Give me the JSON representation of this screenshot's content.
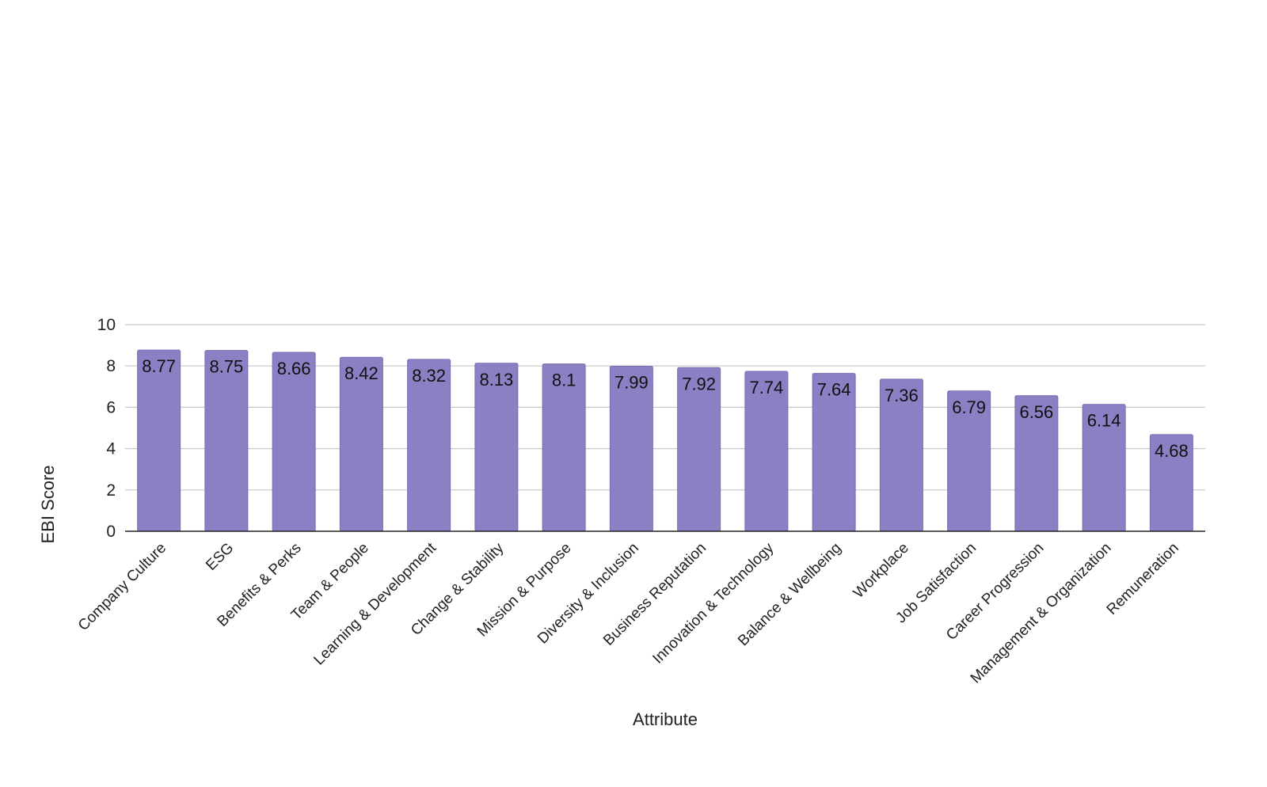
{
  "chart_data": {
    "type": "bar",
    "title": "",
    "xlabel": "Attribute",
    "ylabel": "EBI Score",
    "ylim": [
      0,
      10
    ],
    "yticks": [
      0,
      2,
      4,
      6,
      8,
      10
    ],
    "grid": true,
    "legend": "none",
    "bar_color": "#8c7fc3",
    "categories": [
      "Company Culture",
      "ESG",
      "Benefits & Perks",
      "Team & People",
      "Learning & Development",
      "Change & Stability",
      "Mission & Purpose",
      "Diversity & Inclusion",
      "Business Reputation",
      "Innovation & Technology",
      "Balance & Wellbeing",
      "Workplace",
      "Job Satisfaction",
      "Career Progression",
      "Management & Organization",
      "Remuneration"
    ],
    "values": [
      8.77,
      8.75,
      8.66,
      8.42,
      8.32,
      8.13,
      8.1,
      7.99,
      7.92,
      7.74,
      7.64,
      7.36,
      6.79,
      6.56,
      6.14,
      4.68
    ],
    "data_labels": [
      "8.77",
      "8.75",
      "8.66",
      "8.42",
      "8.32",
      "8.13",
      "8.1",
      "7.99",
      "7.92",
      "7.74",
      "7.64",
      "7.36",
      "6.79",
      "6.56",
      "6.14",
      "4.68"
    ]
  }
}
